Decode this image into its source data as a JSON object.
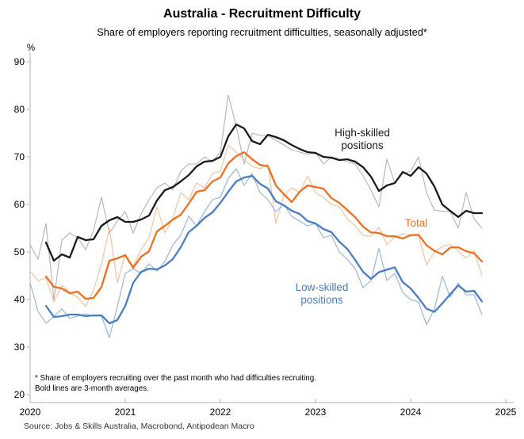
{
  "title": "Australia - Recruitment Difficulty",
  "subtitle": "Share of employers reporting recruitment difficulties, seasonally adjusted*",
  "y_axis": {
    "unit": "%",
    "ticks": [
      90,
      80,
      70,
      60,
      50,
      40,
      30,
      20
    ],
    "min": 20,
    "max": 90
  },
  "x_axis": {
    "ticks": [
      "2020",
      "2021",
      "2022",
      "2023",
      "2024",
      "2025"
    ]
  },
  "annotations": [
    {
      "id": "high",
      "text_line1": "High-skilled",
      "text_line2": "positions",
      "color": "#1a1a1a"
    },
    {
      "id": "total",
      "text_line1": "Total",
      "text_line2": "",
      "color": "#ed7021"
    },
    {
      "id": "low",
      "text_line1": "Low-skilled",
      "text_line2": "positions",
      "color": "#4a7ec2"
    }
  ],
  "footnotes": [
    "* Share of employers recruiting over the past month who had difficulties recruiting.",
    "Bold lines are 3-month averages."
  ],
  "source": "Source: Jobs & Skills Australia, Macrobond, Antipodean Macro",
  "chart_data": {
    "type": "line",
    "unit": "%",
    "frequency": "monthly",
    "start_month": "2020-01",
    "end_month": "2024-10",
    "x_range_years": [
      2020,
      2025
    ],
    "ylim": [
      20,
      90
    ],
    "grid": false,
    "bold_lines": "3-month trailing average of the monthly values",
    "axis_color": "#b0b0b0",
    "series": [
      {
        "name": "High-skilled positions",
        "monthly_color": "#b2b2b2",
        "average_color": "#1a1a1a",
        "monthly": [
          51.5,
          48.5,
          56,
          40,
          52.5,
          54,
          53,
          50.5,
          54.5,
          61.5,
          54,
          56.5,
          58.5,
          54,
          58,
          61,
          63.5,
          64.5,
          63,
          67,
          68.5,
          68.5,
          70,
          69,
          71,
          83,
          76.5,
          68.5,
          75,
          74.5,
          74.5,
          73.5,
          72.5,
          71.5,
          71,
          70.5,
          71,
          68.5,
          70,
          69.5,
          69,
          68.5,
          66,
          63,
          59.5,
          69.5,
          64.5,
          66.5,
          67,
          70,
          62.5,
          58.8,
          58.6,
          58.5,
          55,
          62.5,
          57,
          55
        ]
      },
      {
        "name": "Total",
        "monthly_color": "#f8bd93",
        "average_color": "#ed7021",
        "monthly": [
          46,
          44,
          44.5,
          39.5,
          43,
          41.5,
          40.5,
          38.5,
          42,
          47.5,
          55,
          43.5,
          49.5,
          47,
          50.5,
          53,
          59.5,
          54,
          57,
          62.5,
          61,
          64.5,
          63.5,
          66.5,
          67,
          72.5,
          71,
          69.5,
          68,
          67.5,
          68.5,
          56,
          62,
          63.5,
          62.5,
          66,
          62.5,
          61.5,
          60,
          59.5,
          57,
          55.5,
          53.5,
          53.3,
          55.2,
          51.5,
          53.2,
          53.8,
          53.6,
          53.4,
          47.3,
          50,
          51.2,
          51.6,
          50.2,
          48.7,
          50.3,
          45
        ]
      },
      {
        "name": "Low-skilled positions",
        "monthly_color": "#8fb2e0",
        "average_color": "#4a7ec2",
        "monthly": [
          43.5,
          37.5,
          35,
          36.5,
          38,
          36,
          36.5,
          37,
          36.5,
          36.5,
          32,
          38.5,
          45.5,
          46.5,
          45.5,
          47.5,
          46,
          48,
          51.5,
          53.5,
          57.5,
          55.5,
          58.5,
          61,
          61.5,
          65.5,
          67.5,
          64,
          66.5,
          62.5,
          61,
          58.5,
          60,
          57.5,
          56.5,
          55.5,
          56,
          53,
          53.5,
          50,
          48.5,
          46.5,
          42.5,
          44,
          50.8,
          44,
          45.5,
          41.5,
          40,
          39.5,
          34.7,
          38,
          44.9,
          40.5,
          43.5,
          41,
          41,
          36.8
        ]
      }
    ]
  }
}
